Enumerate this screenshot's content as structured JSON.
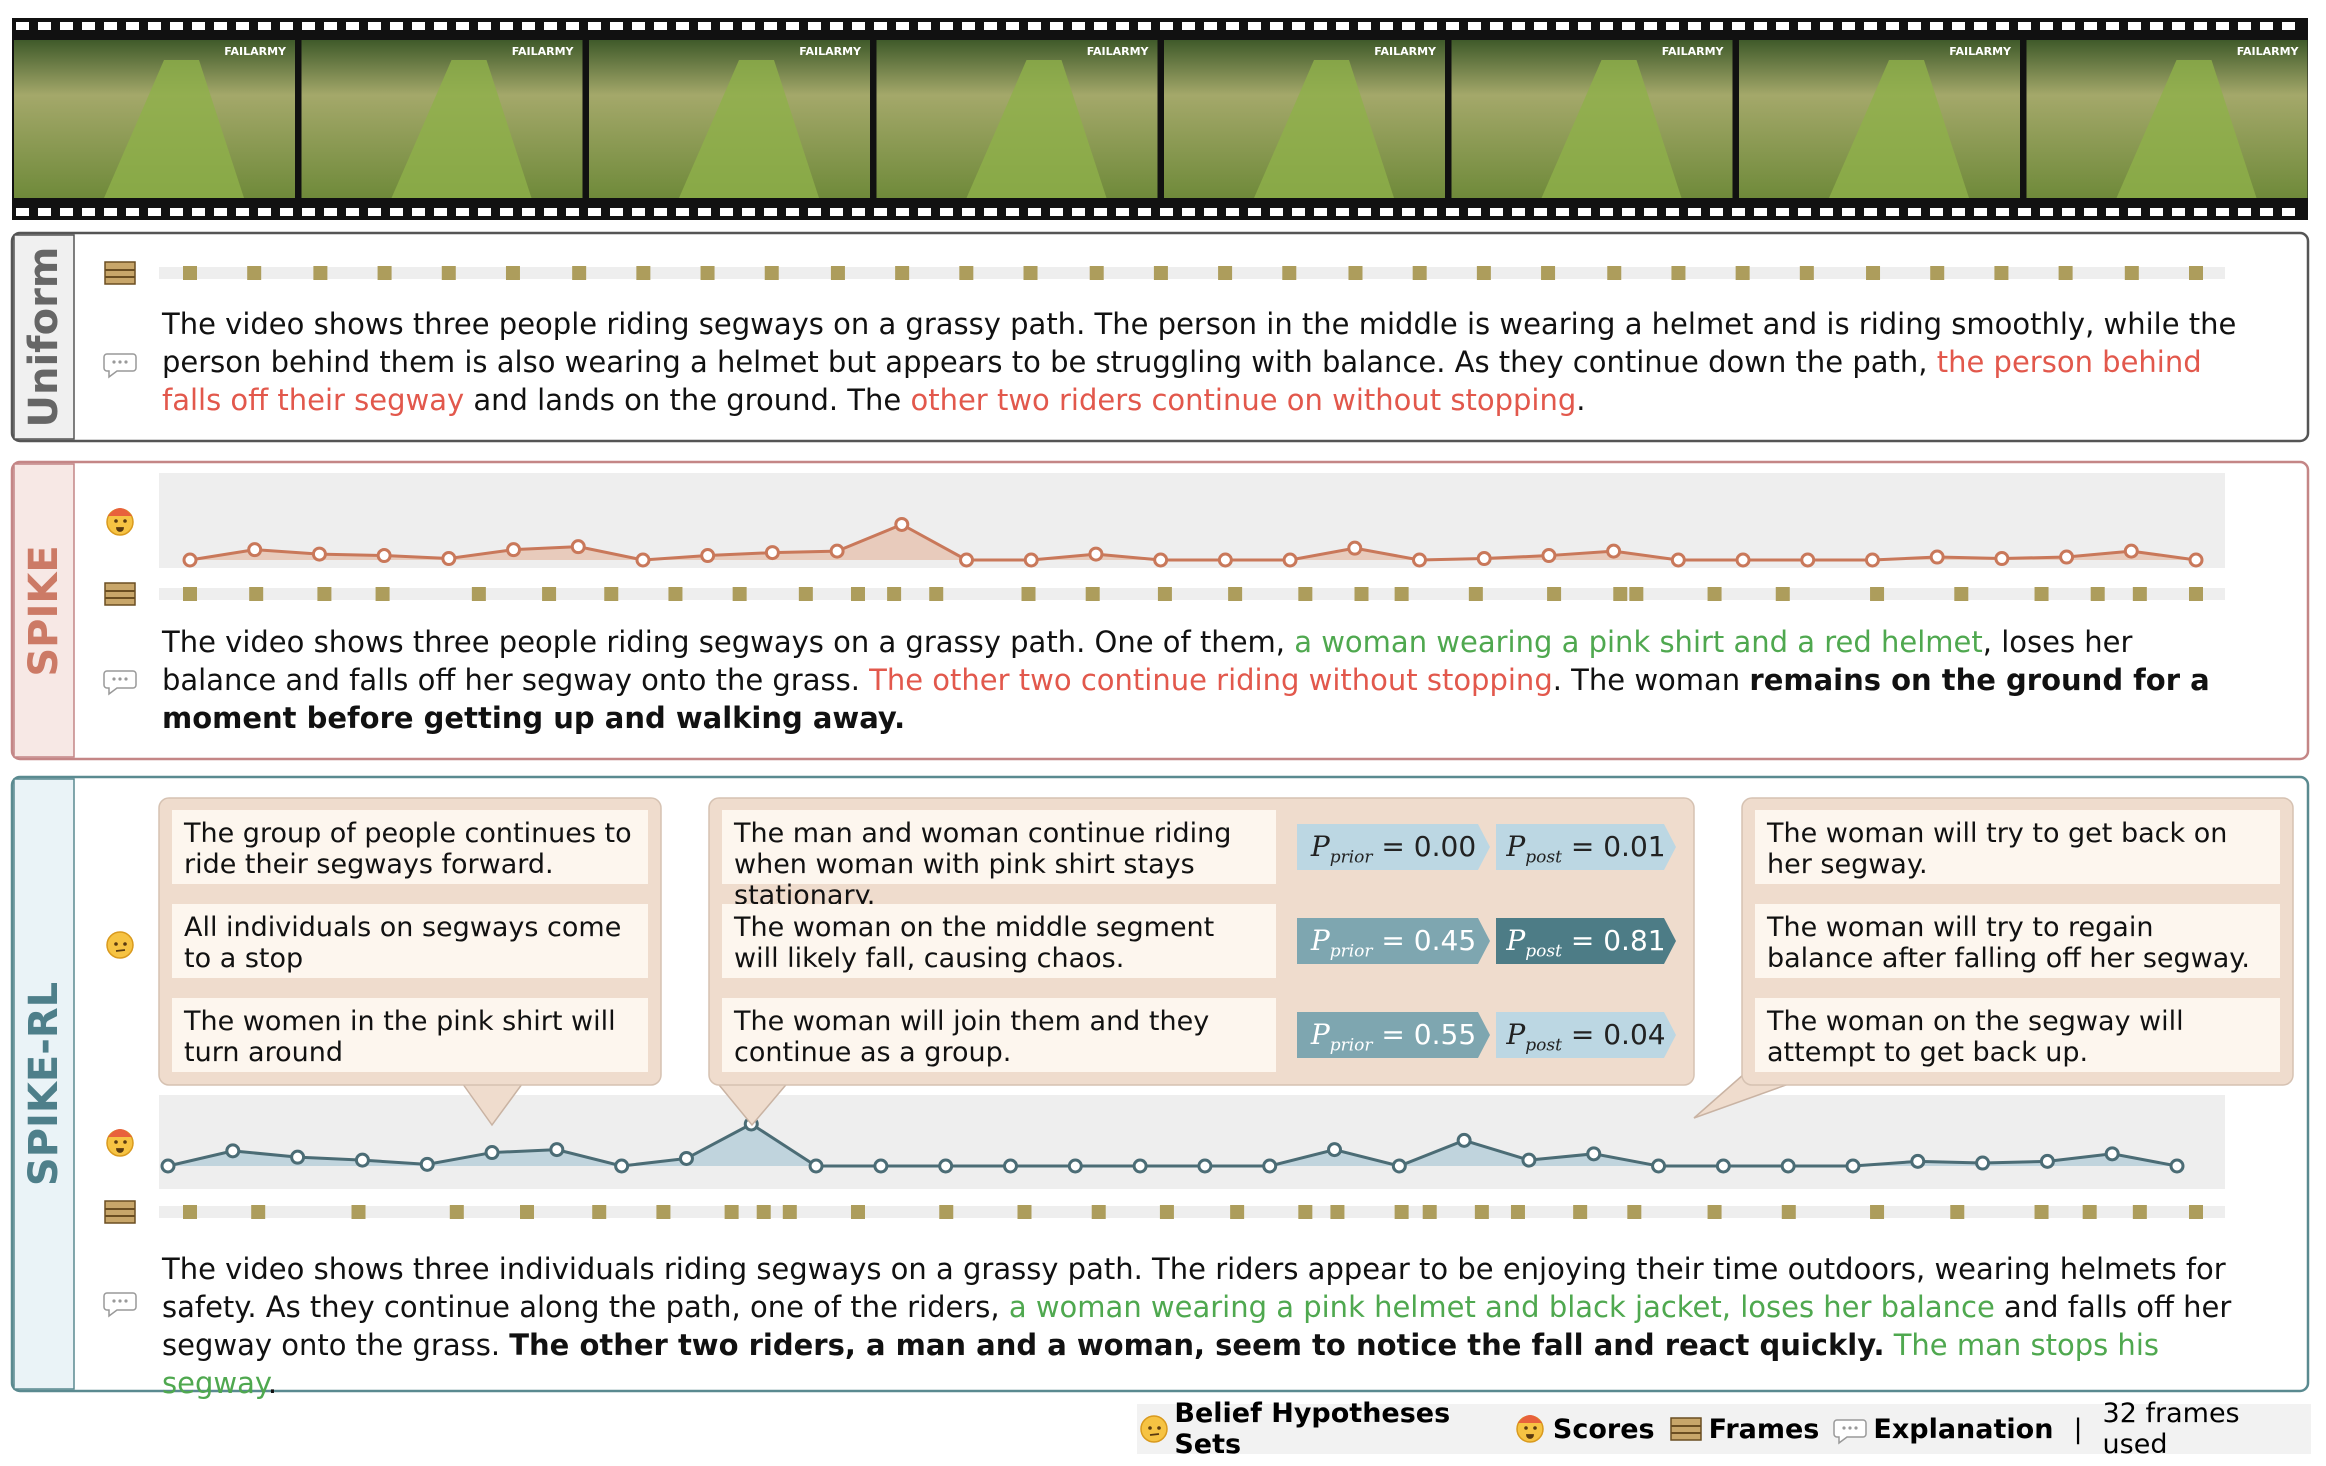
{
  "filmstrip": {
    "watermark": "FAILARMY"
  },
  "panels": [
    {
      "label": "Uniform",
      "frames": [
        0,
        3.2,
        6.5,
        9.7,
        12.9,
        16.1,
        19.4,
        22.6,
        25.8,
        29.0,
        32.3,
        35.5,
        38.7,
        41.9,
        45.2,
        48.4,
        51.6,
        54.8,
        58.1,
        61.3,
        64.5,
        67.7,
        71.0,
        74.2,
        77.4,
        80.6,
        83.9,
        87.1,
        90.3,
        93.5,
        96.8,
        100
      ],
      "explanation": [
        {
          "text": "The video shows three people riding segways on a grassy path. The person in the middle is wearing a helmet and is riding smoothly, while the person behind them is also wearing a helmet but appears to be struggling with balance. As they continue down the path, ",
          "style": "normal"
        },
        {
          "text": "the person behind falls off their segway",
          "style": "red"
        },
        {
          "text": " and lands on the ground. The ",
          "style": "normal"
        },
        {
          "text": "other two riders continue on without stopping",
          "style": "red"
        },
        {
          "text": ".",
          "style": "normal"
        }
      ]
    },
    {
      "label": "SPIKE",
      "scores": [
        0,
        0.28,
        0.16,
        0.12,
        0.04,
        0.28,
        0.36,
        0,
        0.12,
        0.2,
        0.24,
        0.96,
        0,
        0,
        0.16,
        0,
        0,
        0,
        0.32,
        0,
        0.04,
        0.12,
        0.24,
        0,
        0,
        0,
        0,
        0.08,
        0.04,
        0.08,
        0.24,
        0
      ],
      "frames": [
        0,
        3.3,
        6.7,
        9.6,
        14.4,
        17.9,
        21.0,
        24.2,
        27.4,
        30.7,
        33.3,
        35.1,
        37.2,
        41.8,
        45.0,
        48.6,
        52.1,
        55.6,
        58.4,
        60.4,
        64.1,
        68.0,
        71.3,
        72.1,
        76.0,
        79.4,
        84.1,
        88.3,
        92.3,
        95.1,
        97.2,
        100
      ],
      "explanation": [
        {
          "text": "The video shows three people riding segways on a grassy path. One of them, ",
          "style": "normal"
        },
        {
          "text": "a woman wearing a pink shirt and a red helmet",
          "style": "green"
        },
        {
          "text": ", loses her balance and falls off her segway onto the grass. ",
          "style": "normal"
        },
        {
          "text": "The other two continue riding without stopping",
          "style": "red"
        },
        {
          "text": ". The woman ",
          "style": "normal"
        },
        {
          "text": "remains on the ground for a moment before getting up and walking away",
          "style": "bold"
        },
        {
          "text": ".",
          "style": "bold"
        }
      ]
    },
    {
      "label": "SPIKE-RL",
      "scores": [
        0,
        0.36,
        0.21,
        0.14,
        0.04,
        0.32,
        0.39,
        0,
        0.18,
        1.0,
        0,
        0,
        0,
        0,
        0,
        0,
        0,
        0,
        0.39,
        0,
        0.61,
        0.14,
        0.29,
        0,
        0,
        0,
        0,
        0.11,
        0.07,
        0.11,
        0.29,
        0
      ],
      "frames": [
        0,
        3.4,
        8.4,
        13.3,
        16.8,
        20.4,
        23.6,
        27.0,
        28.6,
        29.9,
        33.3,
        37.7,
        41.6,
        45.3,
        48.7,
        52.2,
        55.6,
        57.2,
        60.4,
        61.8,
        64.4,
        66.2,
        69.3,
        72.0,
        76.0,
        79.7,
        84.1,
        88.1,
        92.3,
        94.7,
        97.2,
        100
      ],
      "explanation": [
        {
          "text": "The video shows three individuals riding segways on a grassy path. The riders appear to be enjoying their time outdoors, wearing helmets for safety. As they continue along the path, one of the riders, ",
          "style": "normal"
        },
        {
          "text": "a woman wearing a pink helmet and black jacket, loses her balance",
          "style": "green"
        },
        {
          "text": " and falls off her segway onto the grass. ",
          "style": "normal"
        },
        {
          "text": "The other two riders, a man and a woman, seem to notice the fall and react quickly.",
          "style": "bold"
        },
        {
          "text": " The man stops his segway",
          "style": "green"
        },
        {
          "text": ".",
          "style": "normal"
        }
      ]
    }
  ],
  "hypotheses": {
    "left": [
      "The group of people continues to ride their segways forward.",
      "All individuals on segways come to a stop",
      "The women in the pink shirt will turn around"
    ],
    "middle": [
      {
        "text": "The man and woman continue riding when woman with pink shirt stays stationary.",
        "prior": 0,
        "prior_label": "0.00",
        "post": 0.01,
        "post_label": "0.01"
      },
      {
        "text": "The woman on the middle segment will likely fall, causing chaos.",
        "prior": 0.45,
        "prior_label": "0.45",
        "post": 0.81,
        "post_label": "0.81"
      },
      {
        "text": "The woman will join them and they continue as a group.",
        "prior": 0.55,
        "prior_label": "0.55",
        "post": 0.04,
        "post_label": "0.04"
      }
    ],
    "right": [
      "The woman will try to get back on her segway.",
      "The woman will try to regain balance after falling off her segway.",
      "The woman on the segway will attempt to get back up."
    ]
  },
  "probability": {
    "symbol": "P",
    "prior": "prior",
    "post": "post",
    "equals": "="
  },
  "legend": {
    "items": [
      {
        "label": "Belief Hypotheses Sets",
        "icon": "think"
      },
      {
        "label": "Scores",
        "icon": "score"
      },
      {
        "label": "Frames",
        "icon": "frames"
      },
      {
        "label": "Explanation",
        "icon": "chat"
      }
    ],
    "separator": "|",
    "note": "32 frames used"
  }
}
